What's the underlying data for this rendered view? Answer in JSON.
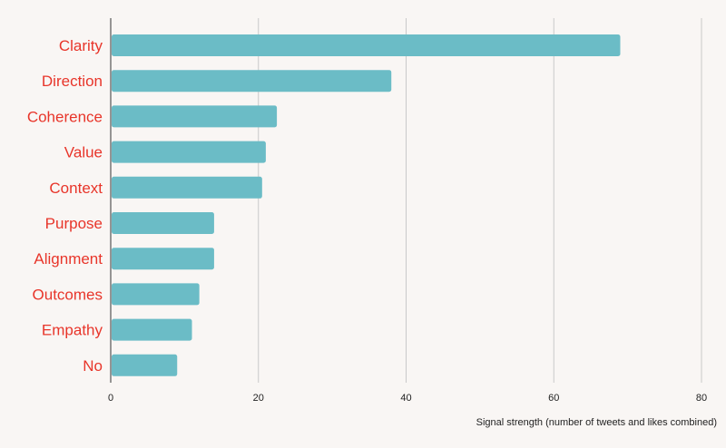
{
  "colors": {
    "background": "#f9f6f4",
    "bar": "#6bbcc6",
    "category_label": "#e8352a",
    "gridline": "#c9c9c9",
    "axis_text": "#222222"
  },
  "chart_data": {
    "type": "bar",
    "orientation": "horizontal",
    "categories": [
      "Clarity",
      "Direction",
      "Coherence",
      "Value",
      "Context",
      "Purpose",
      "Alignment",
      "Outcomes",
      "Empathy",
      "No"
    ],
    "values": [
      69,
      38,
      22.5,
      21,
      20.5,
      14,
      14,
      12,
      11,
      9
    ],
    "xlabel": "Signal strength (number of tweets and likes combined)",
    "ylabel": "",
    "xlim": [
      0,
      80
    ],
    "xticks": [
      0,
      20,
      40,
      60,
      80
    ],
    "grid": true
  }
}
